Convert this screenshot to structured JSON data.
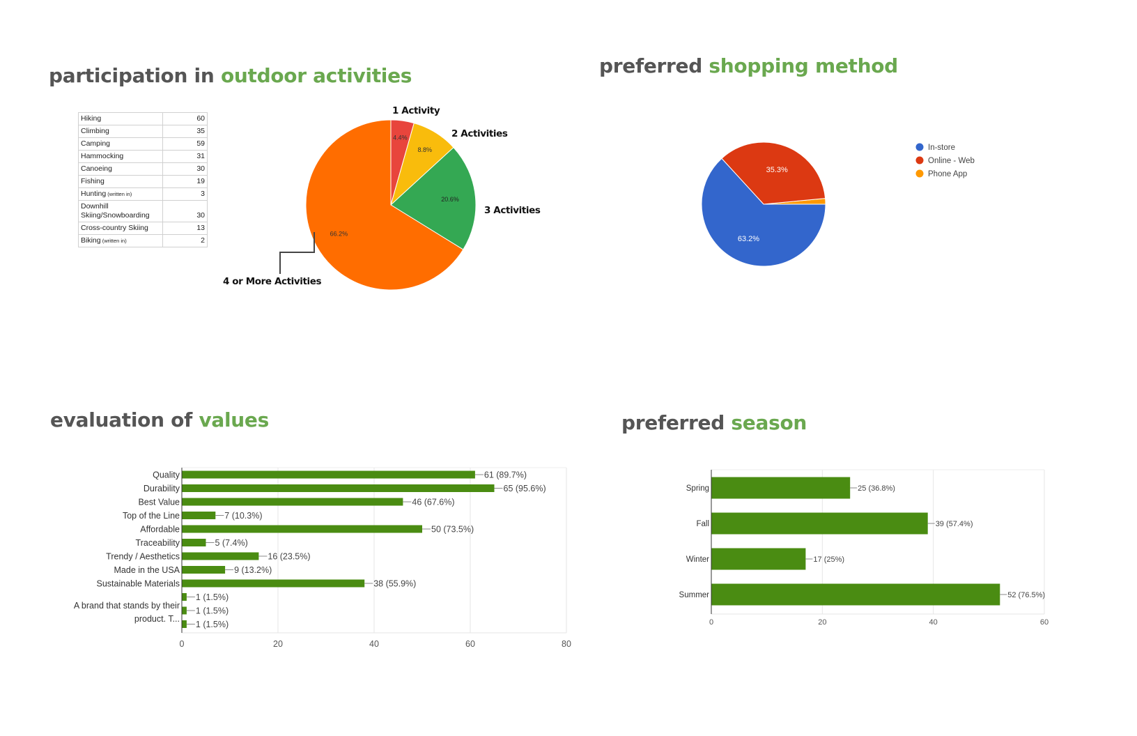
{
  "titles": {
    "outdoor": {
      "lead": "participation in ",
      "accent": "outdoor activities"
    },
    "shopping": {
      "lead": "preferred ",
      "accent": "shopping method"
    },
    "values": {
      "lead": "evaluation of ",
      "accent": "values"
    },
    "season": {
      "lead": "preferred ",
      "accent": "season"
    }
  },
  "colors": {
    "accent": "#6aa84f",
    "heading": "#555555",
    "bar": "#4a8c12"
  },
  "chart_data": [
    {
      "type": "table",
      "rows": [
        {
          "name": "Hiking",
          "value": 60
        },
        {
          "name": "Climbing",
          "value": 35
        },
        {
          "name": "Camping",
          "value": 59
        },
        {
          "name": "Hammocking",
          "value": 31
        },
        {
          "name": "Canoeing",
          "value": 30
        },
        {
          "name": "Fishing",
          "value": 19
        },
        {
          "name": "Hunting",
          "note": "(written in)",
          "value": 3
        },
        {
          "name": "Downhill Skiing/Snowboarding",
          "value": 30
        },
        {
          "name": "Cross-country Skiing",
          "value": 13
        },
        {
          "name": "Biking",
          "note": "(written in)",
          "value": 2
        }
      ]
    },
    {
      "type": "pie",
      "slices": [
        {
          "label": "1 Activity",
          "value": 4.4,
          "pct_label": "4.4%",
          "color": "#e8453c"
        },
        {
          "label": "2 Activities",
          "value": 8.8,
          "pct_label": "8.8%",
          "color": "#f9bc0c"
        },
        {
          "label": "3 Activities",
          "value": 20.6,
          "pct_label": "20.6%",
          "color": "#34a853"
        },
        {
          "label": "4 or More Activities",
          "value": 66.2,
          "pct_label": "66.2%",
          "color": "#ff6d00"
        }
      ]
    },
    {
      "type": "pie",
      "legend_position": "right",
      "slices": [
        {
          "label": "In-store",
          "value": 63.2,
          "pct_label": "63.2%",
          "color": "#3366cc"
        },
        {
          "label": "Online - Web",
          "value": 35.3,
          "pct_label": "35.3%",
          "color": "#dc3912"
        },
        {
          "label": "Phone App",
          "value": 1.5,
          "pct_label": "",
          "color": "#ff9900"
        }
      ]
    },
    {
      "type": "bar",
      "orientation": "horizontal",
      "categories": [
        "Quality",
        "Durability",
        "Best Value",
        "Top of the Line",
        "Affordable",
        "Traceability",
        "Trendy / Aesthetics",
        "Made in the USA",
        "Sustainable Materials",
        "",
        "",
        ""
      ],
      "category_group_label": [
        "A brand that stands by their",
        "product. T..."
      ],
      "values": [
        61,
        65,
        46,
        7,
        50,
        5,
        16,
        9,
        38,
        1,
        1,
        1
      ],
      "value_labels": [
        "61 (89.7%)",
        "65 (95.6%)",
        "46 (67.6%)",
        "7 (10.3%)",
        "50 (73.5%)",
        "5 (7.4%)",
        "16 (23.5%)",
        "9 (13.2%)",
        "38 (55.9%)",
        "1 (1.5%)",
        "1 (1.5%)",
        "1 (1.5%)"
      ],
      "xlim": [
        0,
        80
      ],
      "xticks": [
        "0",
        "20",
        "40",
        "60",
        "80"
      ],
      "grid": true
    },
    {
      "type": "bar",
      "orientation": "horizontal",
      "categories": [
        "Spring",
        "Fall",
        "Winter",
        "Summer"
      ],
      "values": [
        25,
        39,
        17,
        52
      ],
      "value_labels": [
        "25 (36.8%)",
        "39 (57.4%)",
        "17 (25%)",
        "52 (76.5%)"
      ],
      "xlim": [
        0,
        60
      ],
      "xticks": [
        "0",
        "20",
        "40",
        "60"
      ],
      "grid": true
    }
  ]
}
